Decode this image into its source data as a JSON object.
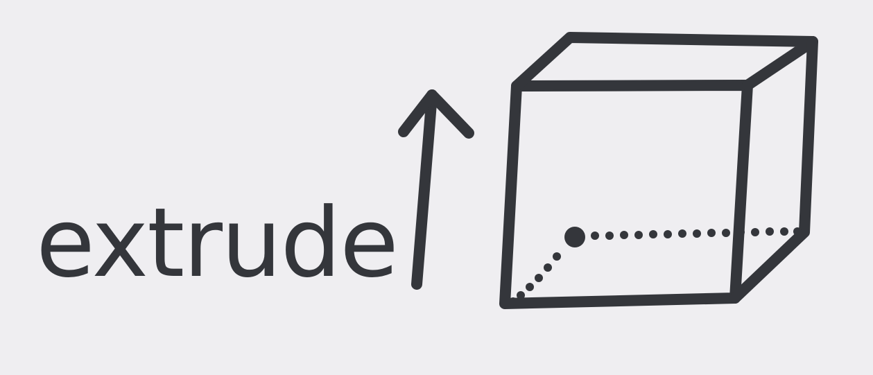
{
  "diagram": {
    "label": "extrude",
    "ink_color": "#34363b",
    "paper_color": "#efeef1"
  }
}
